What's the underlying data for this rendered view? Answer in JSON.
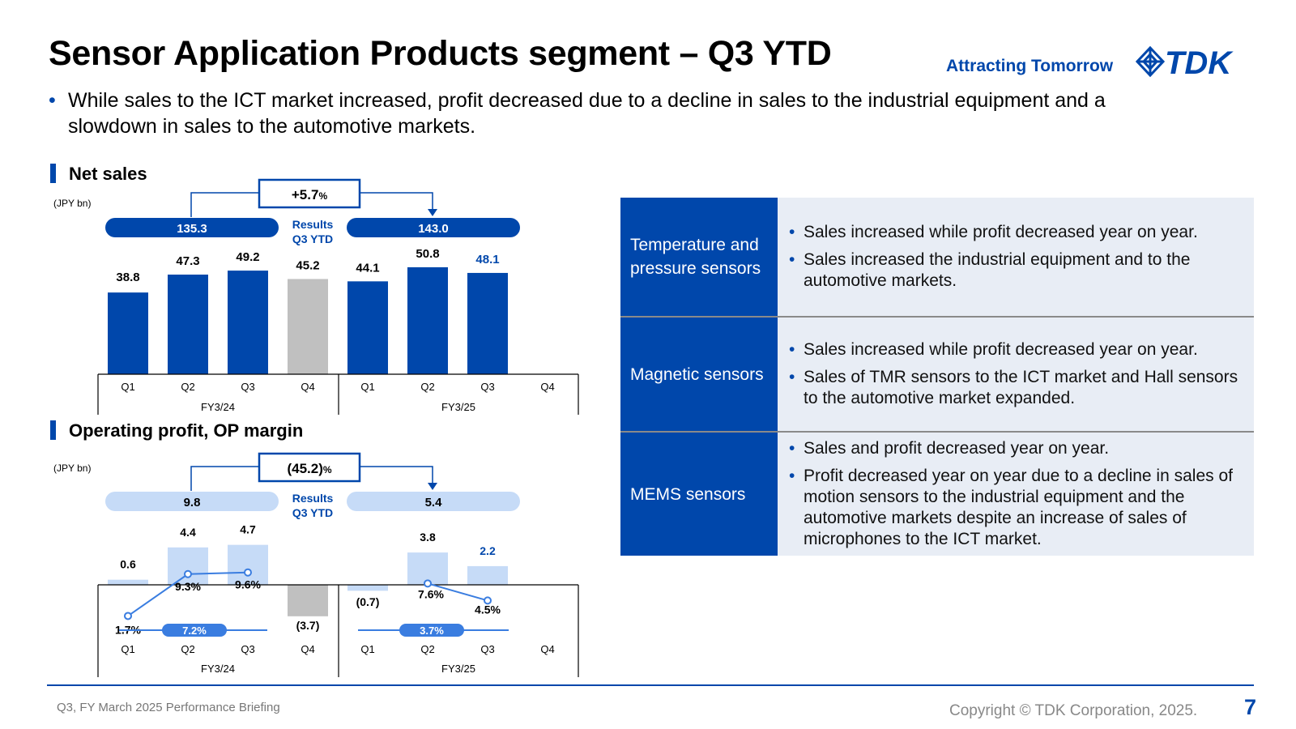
{
  "header": {
    "title": "Sensor Application Products segment – Q3 YTD",
    "tagline": "Attracting Tomorrow",
    "logo_text": "TDK",
    "logo_icon": "tdk-logo-icon",
    "brand_color": "#0047ab"
  },
  "summary_bullet": "While sales to the ICT market increased, profit decreased due to a decline in sales to the industrial equipment and a slowdown in sales to the automotive markets.",
  "net_sales_section": {
    "title": "Net sales",
    "unit": "(JPY bn)"
  },
  "op_section": {
    "title": "Operating profit, OP margin",
    "unit": "(JPY bn)"
  },
  "chart_data": [
    {
      "type": "bar",
      "categories": [
        "Q1",
        "Q2",
        "Q3",
        "Q4",
        "Q1",
        "Q2",
        "Q3",
        "Q4"
      ],
      "groups": [
        "FY3/24",
        "FY3/25"
      ],
      "values": [
        38.8,
        47.3,
        49.2,
        45.2,
        44.1,
        50.8,
        48.1,
        null
      ],
      "value_labels": [
        "38.8",
        "47.3",
        "49.2",
        "45.2",
        "44.1",
        "50.8",
        "48.1",
        ""
      ],
      "ylim": [
        0,
        60
      ],
      "bar_colors": [
        "#0047ab",
        "#0047ab",
        "#0047ab",
        "#c0c0c0",
        "#0047ab",
        "#0047ab",
        "#0047ab",
        "#0047ab"
      ],
      "label_colors": [
        "#000",
        "#000",
        "#000",
        "#000",
        "#000",
        "#000",
        "#0047ab",
        "#000"
      ],
      "ytd_prior": "135.3",
      "ytd_current": "143.0",
      "change_value": "+5.7",
      "change_unit": "%",
      "results_label": "Results",
      "ytd_label": "Q3 YTD"
    },
    {
      "type": "bar",
      "categories": [
        "Q1",
        "Q2",
        "Q3",
        "Q4",
        "Q1",
        "Q2",
        "Q3",
        "Q4"
      ],
      "groups": [
        "FY3/24",
        "FY3/25"
      ],
      "values": [
        0.6,
        4.4,
        4.7,
        -3.7,
        -0.7,
        3.8,
        2.2,
        null
      ],
      "value_labels": [
        "0.6",
        "4.4",
        "4.7",
        "(3.7)",
        "(0.7)",
        "3.8",
        "2.2",
        ""
      ],
      "bar_colors": [
        "#c6dbf7",
        "#c6dbf7",
        "#c6dbf7",
        "#c0c0c0",
        "#c6dbf7",
        "#c6dbf7",
        "#c6dbf7",
        "#c6dbf7"
      ],
      "label_colors": [
        "#000",
        "#000",
        "#000",
        "#000",
        "#000",
        "#000",
        "#0047ab",
        "#000"
      ],
      "ylim": [
        -4.5,
        7
      ],
      "margin_series": {
        "name": "OP margin",
        "values": [
          1.7,
          9.3,
          9.6,
          null,
          null,
          7.6,
          4.5,
          null
        ],
        "labels": [
          "1.7%",
          "9.3%",
          "9.6%",
          "",
          "",
          "7.6%",
          "4.5%",
          ""
        ],
        "color": "#3a7de0"
      },
      "average_margins": [
        "7.2%",
        "3.7%"
      ],
      "ytd_prior": "9.8",
      "ytd_current": "5.4",
      "change_value": "(45.2)",
      "change_unit": "%",
      "results_label": "Results",
      "ytd_label": "Q3 YTD"
    }
  ],
  "segments": [
    {
      "name": "Temperature and pressure sensors",
      "bullets": [
        "Sales increased while profit decreased year on year.",
        "Sales increased the industrial equipment and to the automotive markets."
      ]
    },
    {
      "name": "Magnetic sensors",
      "bullets": [
        "Sales increased while profit decreased year on year.",
        "Sales of TMR sensors to the ICT market and Hall sensors to the automotive market expanded."
      ]
    },
    {
      "name": "MEMS sensors",
      "bullets": [
        "Sales and profit decreased year on year.",
        "Profit decreased year on year due to a decline in sales of motion sensors to the industrial equipment and the automotive markets despite an increase of sales of microphones to the ICT market."
      ]
    }
  ],
  "footer": {
    "briefing": "Q3, FY March 2025 Performance Briefing",
    "copyright": "Copyright © TDK Corporation, 2025.",
    "page": "7"
  }
}
